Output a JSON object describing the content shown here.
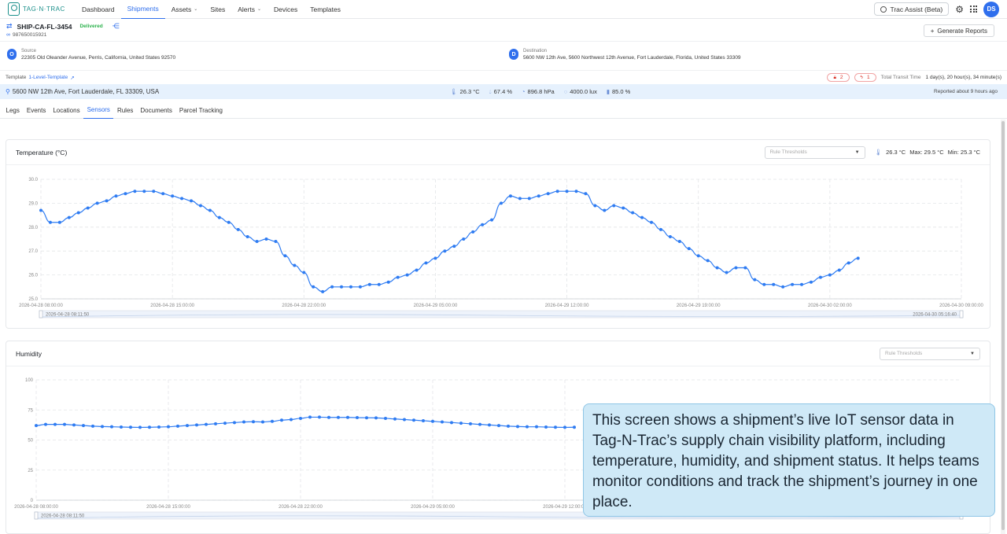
{
  "nav": {
    "logo_text": "TAG·N·TRAC",
    "items": [
      {
        "label": "Dashboard",
        "has_menu": false
      },
      {
        "label": "Shipments",
        "has_menu": false,
        "active": true
      },
      {
        "label": "Assets",
        "has_menu": true
      },
      {
        "label": "Sites",
        "has_menu": false
      },
      {
        "label": "Alerts",
        "has_menu": true
      },
      {
        "label": "Devices",
        "has_menu": false
      },
      {
        "label": "Templates",
        "has_menu": false
      }
    ],
    "assist_label": "Trac Assist (Beta)",
    "avatar_initials": "DS"
  },
  "shipment": {
    "id": "SHIP-CA-FL-3454",
    "status": "Delivered",
    "tracking": "987650015921",
    "generate_reports": "Generate Reports"
  },
  "route": {
    "source_badge": "O",
    "source_label": "Source",
    "source_addr": "22305 Old Oleander Avenue, Perris, California, United States 92570",
    "dest_badge": "D",
    "dest_label": "Destination",
    "dest_addr": "5600 NW 12th Ave, 5600 Northwest 12th Avenue, Fort Lauderdale, Florida, United States 33309"
  },
  "template_row": {
    "label": "Template",
    "link": "1-Level-Template",
    "alert_count_1": "2",
    "alert_count_2": "1",
    "transit_label": "Total Transit Time",
    "transit_value": "1 day(s), 20 hour(s), 34 minute(s)"
  },
  "livebar": {
    "location": "5600 NW 12th Ave, Fort Lauderdale, FL 33309, USA",
    "temp": "26.3 °C",
    "humidity": "67.4 %",
    "pressure": "896.8 hPa",
    "light": "4000.0 lux",
    "battery": "85.0 %",
    "reported": "Reported about 9 hours ago"
  },
  "tabs": [
    "Legs",
    "Events",
    "Locations",
    "Sensors",
    "Rules",
    "Documents",
    "Parcel Tracking"
  ],
  "active_tab": "Sensors",
  "temp_card": {
    "title": "Temperature (°C)",
    "rule_placeholder": "Rule Thresholds",
    "current": "26.3 °C",
    "max": "Max: 29.5 °C",
    "min": "Min: 25.3 °C",
    "range_start": "2026-04-28 08:11:50",
    "range_end": "2026-04-30 05:16:40"
  },
  "hum_card": {
    "title": "Humidity",
    "rule_placeholder": "Rule Thresholds",
    "range_start": "2026-04-28 08:11:50"
  },
  "callout": "This screen shows a shipment’s live IoT sensor data in Tag-N-Trac’s supply chain visibility platform, including temperature, humidity, and shipment status. It helps teams monitor conditions and track the shipment’s journey in one place.",
  "chart_data": [
    {
      "type": "line",
      "title": "Temperature (°C)",
      "x_ticks": [
        "2026-04-28 08:00:00",
        "2026-04-28 15:00:00",
        "2026-04-28 22:00:00",
        "2026-04-29 05:00:00",
        "2026-04-29 12:00:00",
        "2026-04-29 19:00:00",
        "2026-04-30 02:00:00",
        "2026-04-30 09:00:00"
      ],
      "y_ticks": [
        "25.0",
        "26.0",
        "27.0",
        "28.0",
        "29.0",
        "30.0"
      ],
      "ylim": [
        25,
        30
      ],
      "x_hours_range": [
        0,
        49
      ],
      "points_hours": [
        0,
        0.5,
        1,
        1.5,
        2,
        2.5,
        3,
        3.5,
        4,
        4.5,
        5,
        5.5,
        6,
        6.5,
        7,
        7.5,
        8,
        8.5,
        9,
        9.5,
        10,
        10.5,
        11,
        11.5,
        12,
        12.5,
        13,
        13.5,
        14,
        14.5,
        15,
        15.5,
        16,
        16.5,
        17,
        17.5,
        18,
        18.5,
        19,
        19.5,
        20,
        20.5,
        21,
        21.5,
        22,
        22.5,
        23,
        23.5,
        24,
        24.5,
        25,
        25.5,
        26,
        26.5,
        27,
        27.5,
        28,
        28.5,
        29,
        29.5,
        30,
        30.5,
        31,
        31.5,
        32,
        32.5,
        33,
        33.5,
        34,
        34.5,
        35,
        35.5,
        36,
        36.5,
        37,
        37.5,
        38,
        38.5,
        39,
        39.5,
        40,
        40.5,
        41,
        41.5,
        42,
        42.5,
        43,
        43.5
      ],
      "values": [
        28.7,
        28.2,
        28.2,
        28.4,
        28.6,
        28.8,
        29.0,
        29.1,
        29.3,
        29.4,
        29.5,
        29.5,
        29.5,
        29.4,
        29.3,
        29.2,
        29.1,
        28.9,
        28.7,
        28.4,
        28.2,
        27.9,
        27.6,
        27.4,
        27.5,
        27.4,
        26.8,
        26.4,
        26.1,
        25.5,
        25.3,
        25.5,
        25.5,
        25.5,
        25.5,
        25.6,
        25.6,
        25.7,
        25.9,
        26.0,
        26.2,
        26.5,
        26.7,
        27.0,
        27.2,
        27.5,
        27.8,
        28.1,
        28.3,
        29.0,
        29.3,
        29.2,
        29.2,
        29.3,
        29.4,
        29.5,
        29.5,
        29.5,
        29.4,
        28.9,
        28.7,
        28.9,
        28.8,
        28.6,
        28.4,
        28.2,
        27.9,
        27.6,
        27.4,
        27.1,
        26.8,
        26.6,
        26.3,
        26.1,
        26.3,
        26.3,
        25.8,
        25.6,
        25.6,
        25.5,
        25.6,
        25.6,
        25.7,
        25.9,
        26.0,
        26.2,
        26.5,
        26.7
      ]
    },
    {
      "type": "line",
      "title": "Humidity",
      "x_ticks": [
        "2026-04-28 08:00:00",
        "2026-04-28 15:00:00",
        "2026-04-28 22:00:00",
        "2026-04-29 05:00:00",
        "2026-04-29 12:00:00"
      ],
      "y_ticks": [
        "0",
        "25",
        "50",
        "75",
        "100"
      ],
      "ylim": [
        0,
        100
      ],
      "x_hours_range": [
        0,
        49
      ],
      "points_hours": [
        0,
        0.5,
        1,
        1.5,
        2,
        2.5,
        3,
        3.5,
        4,
        4.5,
        5,
        5.5,
        6,
        6.5,
        7,
        7.5,
        8,
        8.5,
        9,
        9.5,
        10,
        10.5,
        11,
        11.5,
        12,
        12.5,
        13,
        13.5,
        14,
        14.5,
        15,
        15.5,
        16,
        16.5,
        17,
        17.5,
        18,
        18.5,
        19,
        19.5,
        20,
        20.5,
        21,
        21.5,
        22,
        22.5,
        23,
        23.5,
        24,
        24.5,
        25,
        25.5,
        26,
        26.5,
        27,
        27.5,
        28,
        28.5
      ],
      "values": [
        62,
        63,
        63,
        63,
        62.5,
        62,
        61.5,
        61.2,
        61,
        60.8,
        60.6,
        60.5,
        60.6,
        60.8,
        61,
        61.5,
        62,
        62.5,
        63,
        63.5,
        64,
        64.5,
        65,
        65.2,
        65,
        65.5,
        66.5,
        67,
        68,
        69,
        69,
        68.8,
        68.8,
        68.8,
        68.6,
        68.5,
        68.4,
        68,
        67.5,
        67,
        66.5,
        66,
        65.5,
        65,
        64.5,
        64,
        63.5,
        63,
        62.5,
        62,
        61.5,
        61.2,
        61,
        61,
        60.8,
        60.6,
        60.5,
        60.6
      ]
    }
  ]
}
